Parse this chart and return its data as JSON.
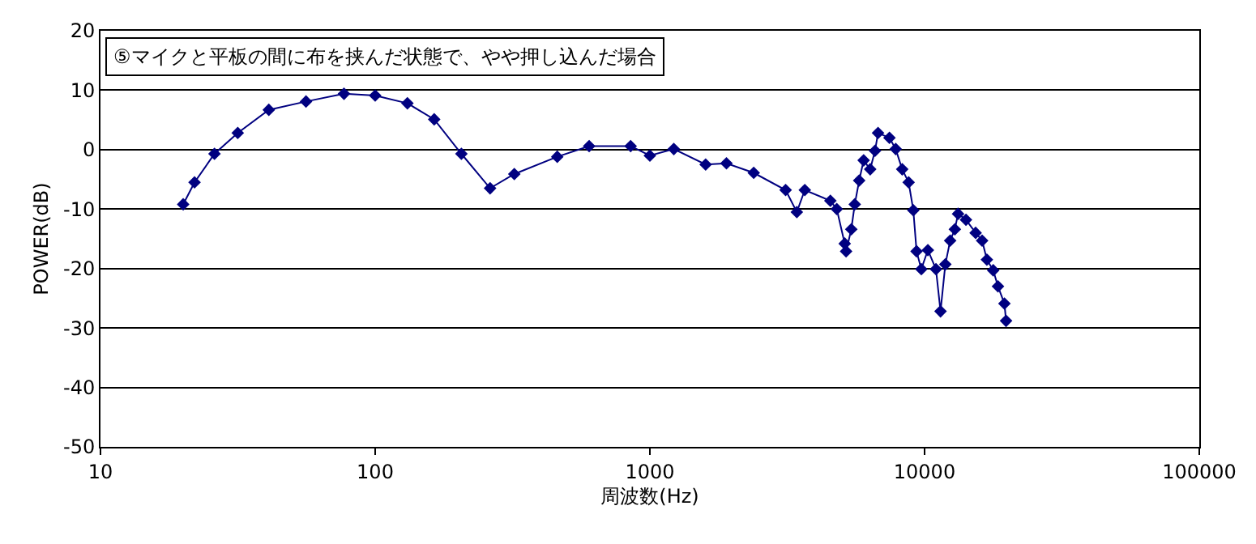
{
  "chart_data": {
    "type": "line",
    "title": "⑤マイクと平板の間に布を挟んだ状態で、やや押し込んだ場合",
    "xlabel": "周波数(Hz)",
    "ylabel": "POWER(dB)",
    "log": "x",
    "grid": "y",
    "marker": "diamond",
    "line_style": "solid",
    "xlim": [
      10,
      100000
    ],
    "xticks": [
      10,
      100,
      1000,
      10000,
      100000
    ],
    "ylim": [
      -50,
      20
    ],
    "yticks": [
      -50,
      -40,
      -30,
      -20,
      -10,
      0,
      10,
      20
    ],
    "series": [
      {
        "color": "#000080",
        "x": [
          20,
          22,
          26,
          31.6,
          41,
          56,
          77,
          100,
          131,
          164,
          206,
          262,
          321,
          460,
          601,
          851,
          1000,
          1222,
          1596,
          1900,
          2388,
          3120,
          3427,
          3664,
          4540,
          4790,
          5120,
          5180,
          5410,
          5570,
          5780,
          6000,
          6340,
          6600,
          6770,
          7450,
          7850,
          8290,
          8750,
          9100,
          9350,
          9730,
          10280,
          11000,
          11430,
          11900,
          12390,
          12890,
          13240,
          14150,
          15340,
          16200,
          16860,
          17780,
          18500,
          19530,
          19800
        ],
        "values": [
          -9.2,
          -5.5,
          -0.7,
          2.8,
          6.7,
          8.1,
          9.4,
          9.1,
          7.8,
          5.1,
          -0.7,
          -6.5,
          -4.1,
          -1.2,
          0.6,
          0.6,
          -1,
          0.1,
          -2.5,
          -2.3,
          -3.9,
          -6.8,
          -10.5,
          -6.8,
          -8.6,
          -10,
          -15.8,
          -17.1,
          -13.4,
          -9.2,
          -5.2,
          -1.8,
          -3.3,
          -0.2,
          2.8,
          2.0,
          0.1,
          -3.3,
          -5.5,
          -10.2,
          -17.1,
          -20.1,
          -16.9,
          -20.1,
          -27.2,
          -19.3,
          -15.3,
          -13.4,
          -10.8,
          -11.8,
          -14,
          -15.3,
          -18.5,
          -20.3,
          -23,
          -25.9,
          -28.8
        ]
      }
    ]
  }
}
